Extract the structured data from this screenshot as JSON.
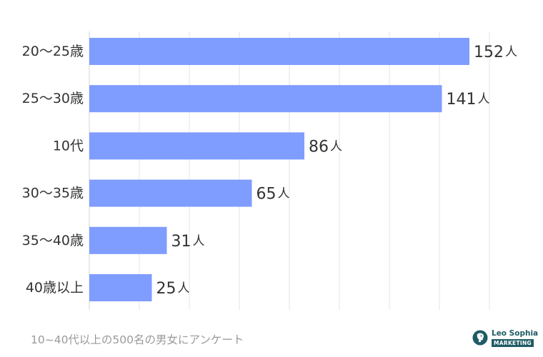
{
  "chart_data": {
    "type": "bar",
    "orientation": "horizontal",
    "categories": [
      "20〜25歳",
      "25〜30歳",
      "10代",
      "30〜35歳",
      "35〜40歳",
      "40歳以上"
    ],
    "values": [
      152,
      141,
      86,
      65,
      31,
      25
    ],
    "value_unit": "人",
    "xlim": [
      0,
      160
    ],
    "grid": true,
    "bar_color": "#7f9cff"
  },
  "footnote": "10~40代以上の500名の男女にアンケート",
  "logo": {
    "name": "Leo Sophia",
    "tag": "MARKETING",
    "color": "#1f5b66"
  }
}
